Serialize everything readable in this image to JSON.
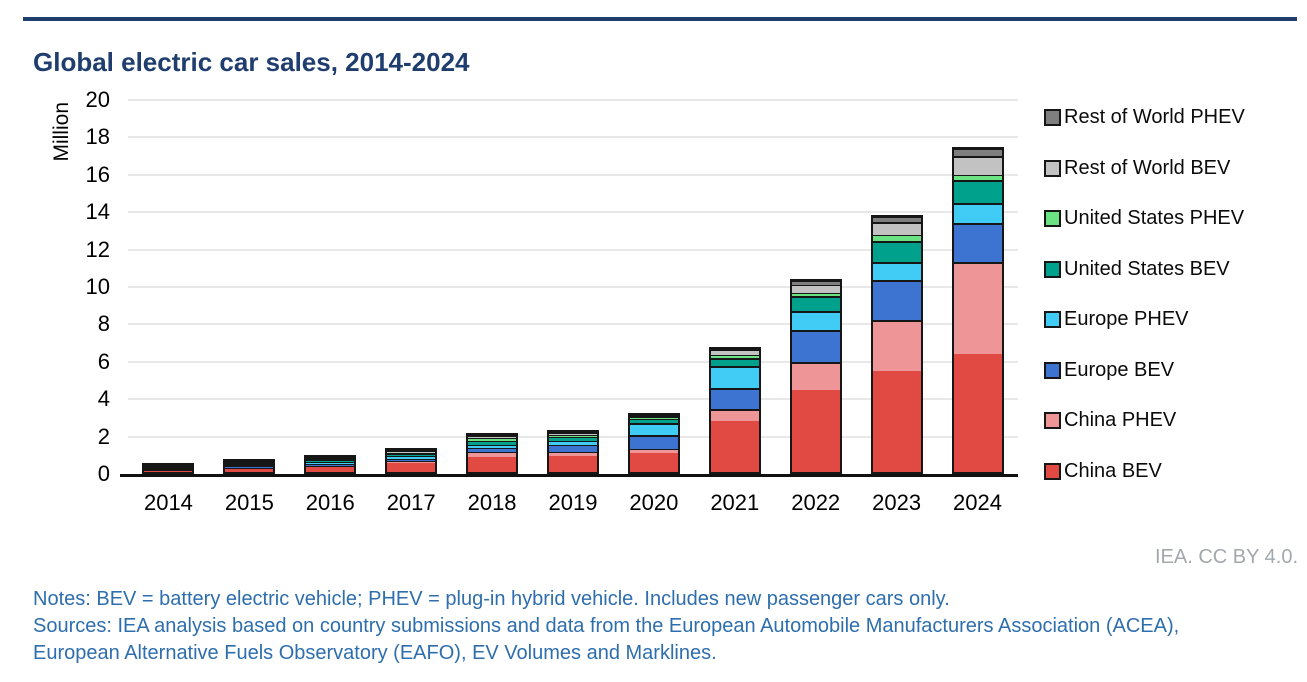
{
  "header": {
    "title": "Global electric car sales, 2014-2024"
  },
  "attribution": "IEA. CC BY 4.0.",
  "footer": {
    "notes": "Notes: BEV = battery electric vehicle; PHEV = plug-in hybrid vehicle. Includes new passenger cars only.",
    "sources": "Sources: IEA analysis based on country submissions and data from the European Automobile Manufacturers Association (ACEA), European Alternative Fuels Observatory (EAFO), EV Volumes and Marklines."
  },
  "style": {
    "accent_navy": "#1f3e6e",
    "footer_blue": "#2e6ead",
    "attribution_gray": "#a3a8ad",
    "grid_gray": "#e8e8e8",
    "bar_border_black": "#161616"
  },
  "chart_data": {
    "type": "bar",
    "stacked": true,
    "title": "Global electric car sales, 2014-2024",
    "xlabel": "",
    "ylabel": "Million",
    "ylim": [
      0,
      20
    ],
    "ytick_step": 2,
    "grid": "horizontal",
    "legend_position": "right",
    "legend_order_top_to_bottom": [
      "Rest of World PHEV",
      "Rest of World BEV",
      "United States PHEV",
      "United States BEV",
      "Europe PHEV",
      "Europe BEV",
      "China PHEV",
      "China BEV"
    ],
    "categories": [
      "2014",
      "2015",
      "2016",
      "2017",
      "2018",
      "2019",
      "2020",
      "2021",
      "2022",
      "2023",
      "2024"
    ],
    "unit": "million vehicles",
    "series": [
      {
        "name": "China BEV",
        "color": "#e04a42",
        "values": [
          0.05,
          0.15,
          0.26,
          0.47,
          0.8,
          0.85,
          1.0,
          2.75,
          4.4,
          5.4,
          6.3
        ]
      },
      {
        "name": "China PHEV",
        "color": "#ed9597",
        "values": [
          0.02,
          0.06,
          0.08,
          0.11,
          0.27,
          0.22,
          0.25,
          0.6,
          1.5,
          2.75,
          4.95
        ]
      },
      {
        "name": "Europe BEV",
        "color": "#3d74d1",
        "values": [
          0.06,
          0.09,
          0.09,
          0.14,
          0.2,
          0.36,
          0.75,
          1.15,
          1.7,
          2.1,
          2.05
        ]
      },
      {
        "name": "Europe PHEV",
        "color": "#41ccf5",
        "values": [
          0.04,
          0.08,
          0.11,
          0.13,
          0.17,
          0.22,
          0.6,
          1.15,
          1.0,
          1.0,
          1.1
        ]
      },
      {
        "name": "United States BEV",
        "color": "#00a18c",
        "values": [
          0.06,
          0.07,
          0.09,
          0.1,
          0.24,
          0.25,
          0.25,
          0.45,
          0.8,
          1.1,
          1.2
        ]
      },
      {
        "name": "United States PHEV",
        "color": "#6be383",
        "values": [
          0.06,
          0.05,
          0.08,
          0.09,
          0.12,
          0.08,
          0.07,
          0.15,
          0.2,
          0.3,
          0.28
        ]
      },
      {
        "name": "Rest of World BEV",
        "color": "#c2c2c2",
        "values": [
          0.02,
          0.03,
          0.05,
          0.1,
          0.14,
          0.12,
          0.1,
          0.25,
          0.4,
          0.7,
          1.0
        ]
      },
      {
        "name": "Rest of World PHEV",
        "color": "#7e7e7e",
        "values": [
          0.01,
          0.02,
          0.03,
          0.05,
          0.06,
          0.04,
          0.03,
          0.1,
          0.2,
          0.3,
          0.4
        ]
      }
    ]
  }
}
